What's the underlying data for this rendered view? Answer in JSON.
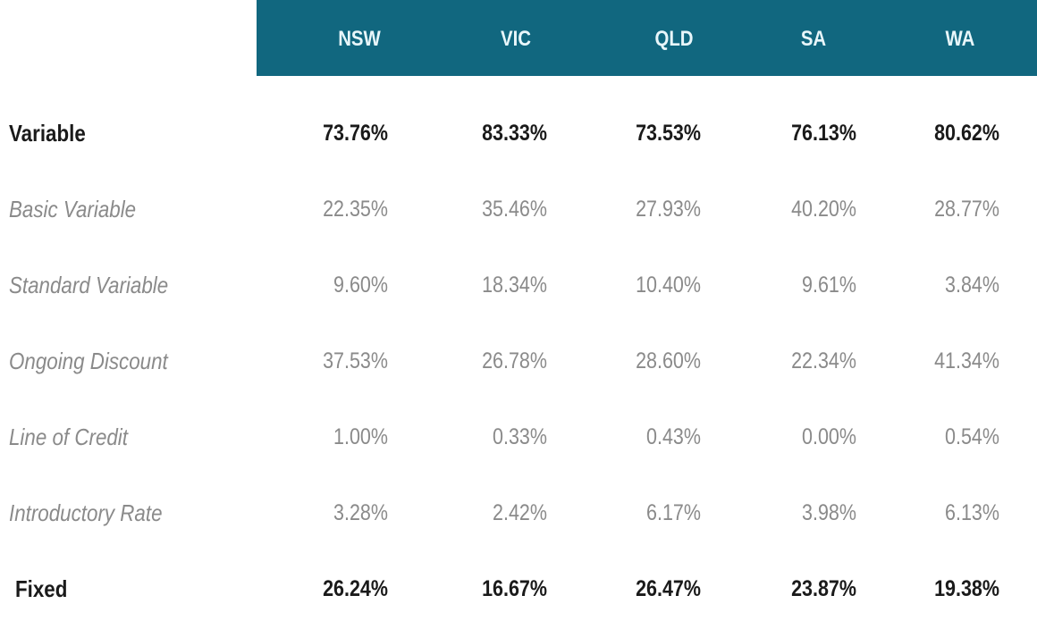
{
  "table": {
    "columns": [
      "NSW",
      "VIC",
      "QLD",
      "SA",
      "WA"
    ],
    "rows": [
      {
        "label": "Variable",
        "style": "bold",
        "values": [
          "73.76%",
          "83.33%",
          "73.53%",
          "76.13%",
          "80.62%"
        ]
      },
      {
        "label": "Basic Variable",
        "style": "sub",
        "values": [
          "22.35%",
          "35.46%",
          "27.93%",
          "40.20%",
          "28.77%"
        ]
      },
      {
        "label": "Standard Variable",
        "style": "sub",
        "values": [
          "9.60%",
          "18.34%",
          "10.40%",
          "9.61%",
          "3.84%"
        ]
      },
      {
        "label": "Ongoing Discount",
        "style": "sub",
        "values": [
          "37.53%",
          "26.78%",
          "28.60%",
          "22.34%",
          "41.34%"
        ]
      },
      {
        "label": "Line of Credit",
        "style": "sub",
        "values": [
          "1.00%",
          "0.33%",
          "0.43%",
          "0.00%",
          "0.54%"
        ]
      },
      {
        "label": "Introductory Rate",
        "style": "sub",
        "values": [
          "3.28%",
          "2.42%",
          "6.17%",
          "3.98%",
          "6.13%"
        ]
      },
      {
        "label": "Fixed",
        "style": "bold",
        "values": [
          "26.24%",
          "16.67%",
          "26.47%",
          "23.87%",
          "19.38%"
        ]
      }
    ]
  },
  "colors": {
    "header_bg": "#11677f",
    "header_text": "#e8f6fa",
    "bold_text": "#1a1a1a",
    "sub_text": "#8a8a8a"
  },
  "chart_data": {
    "type": "table",
    "title": "",
    "categories": [
      "NSW",
      "VIC",
      "QLD",
      "SA",
      "WA"
    ],
    "series": [
      {
        "name": "Variable",
        "values": [
          73.76,
          83.33,
          73.53,
          76.13,
          80.62
        ]
      },
      {
        "name": "Basic Variable",
        "values": [
          22.35,
          35.46,
          27.93,
          40.2,
          28.77
        ]
      },
      {
        "name": "Standard Variable",
        "values": [
          9.6,
          18.34,
          10.4,
          9.61,
          3.84
        ]
      },
      {
        "name": "Ongoing Discount",
        "values": [
          37.53,
          26.78,
          28.6,
          22.34,
          41.34
        ]
      },
      {
        "name": "Line of Credit",
        "values": [
          1.0,
          0.33,
          0.43,
          0.0,
          0.54
        ]
      },
      {
        "name": "Introductory Rate",
        "values": [
          3.28,
          2.42,
          6.17,
          3.98,
          6.13
        ]
      },
      {
        "name": "Fixed",
        "values": [
          26.24,
          16.67,
          26.47,
          23.87,
          19.38
        ]
      }
    ],
    "units": "%"
  }
}
